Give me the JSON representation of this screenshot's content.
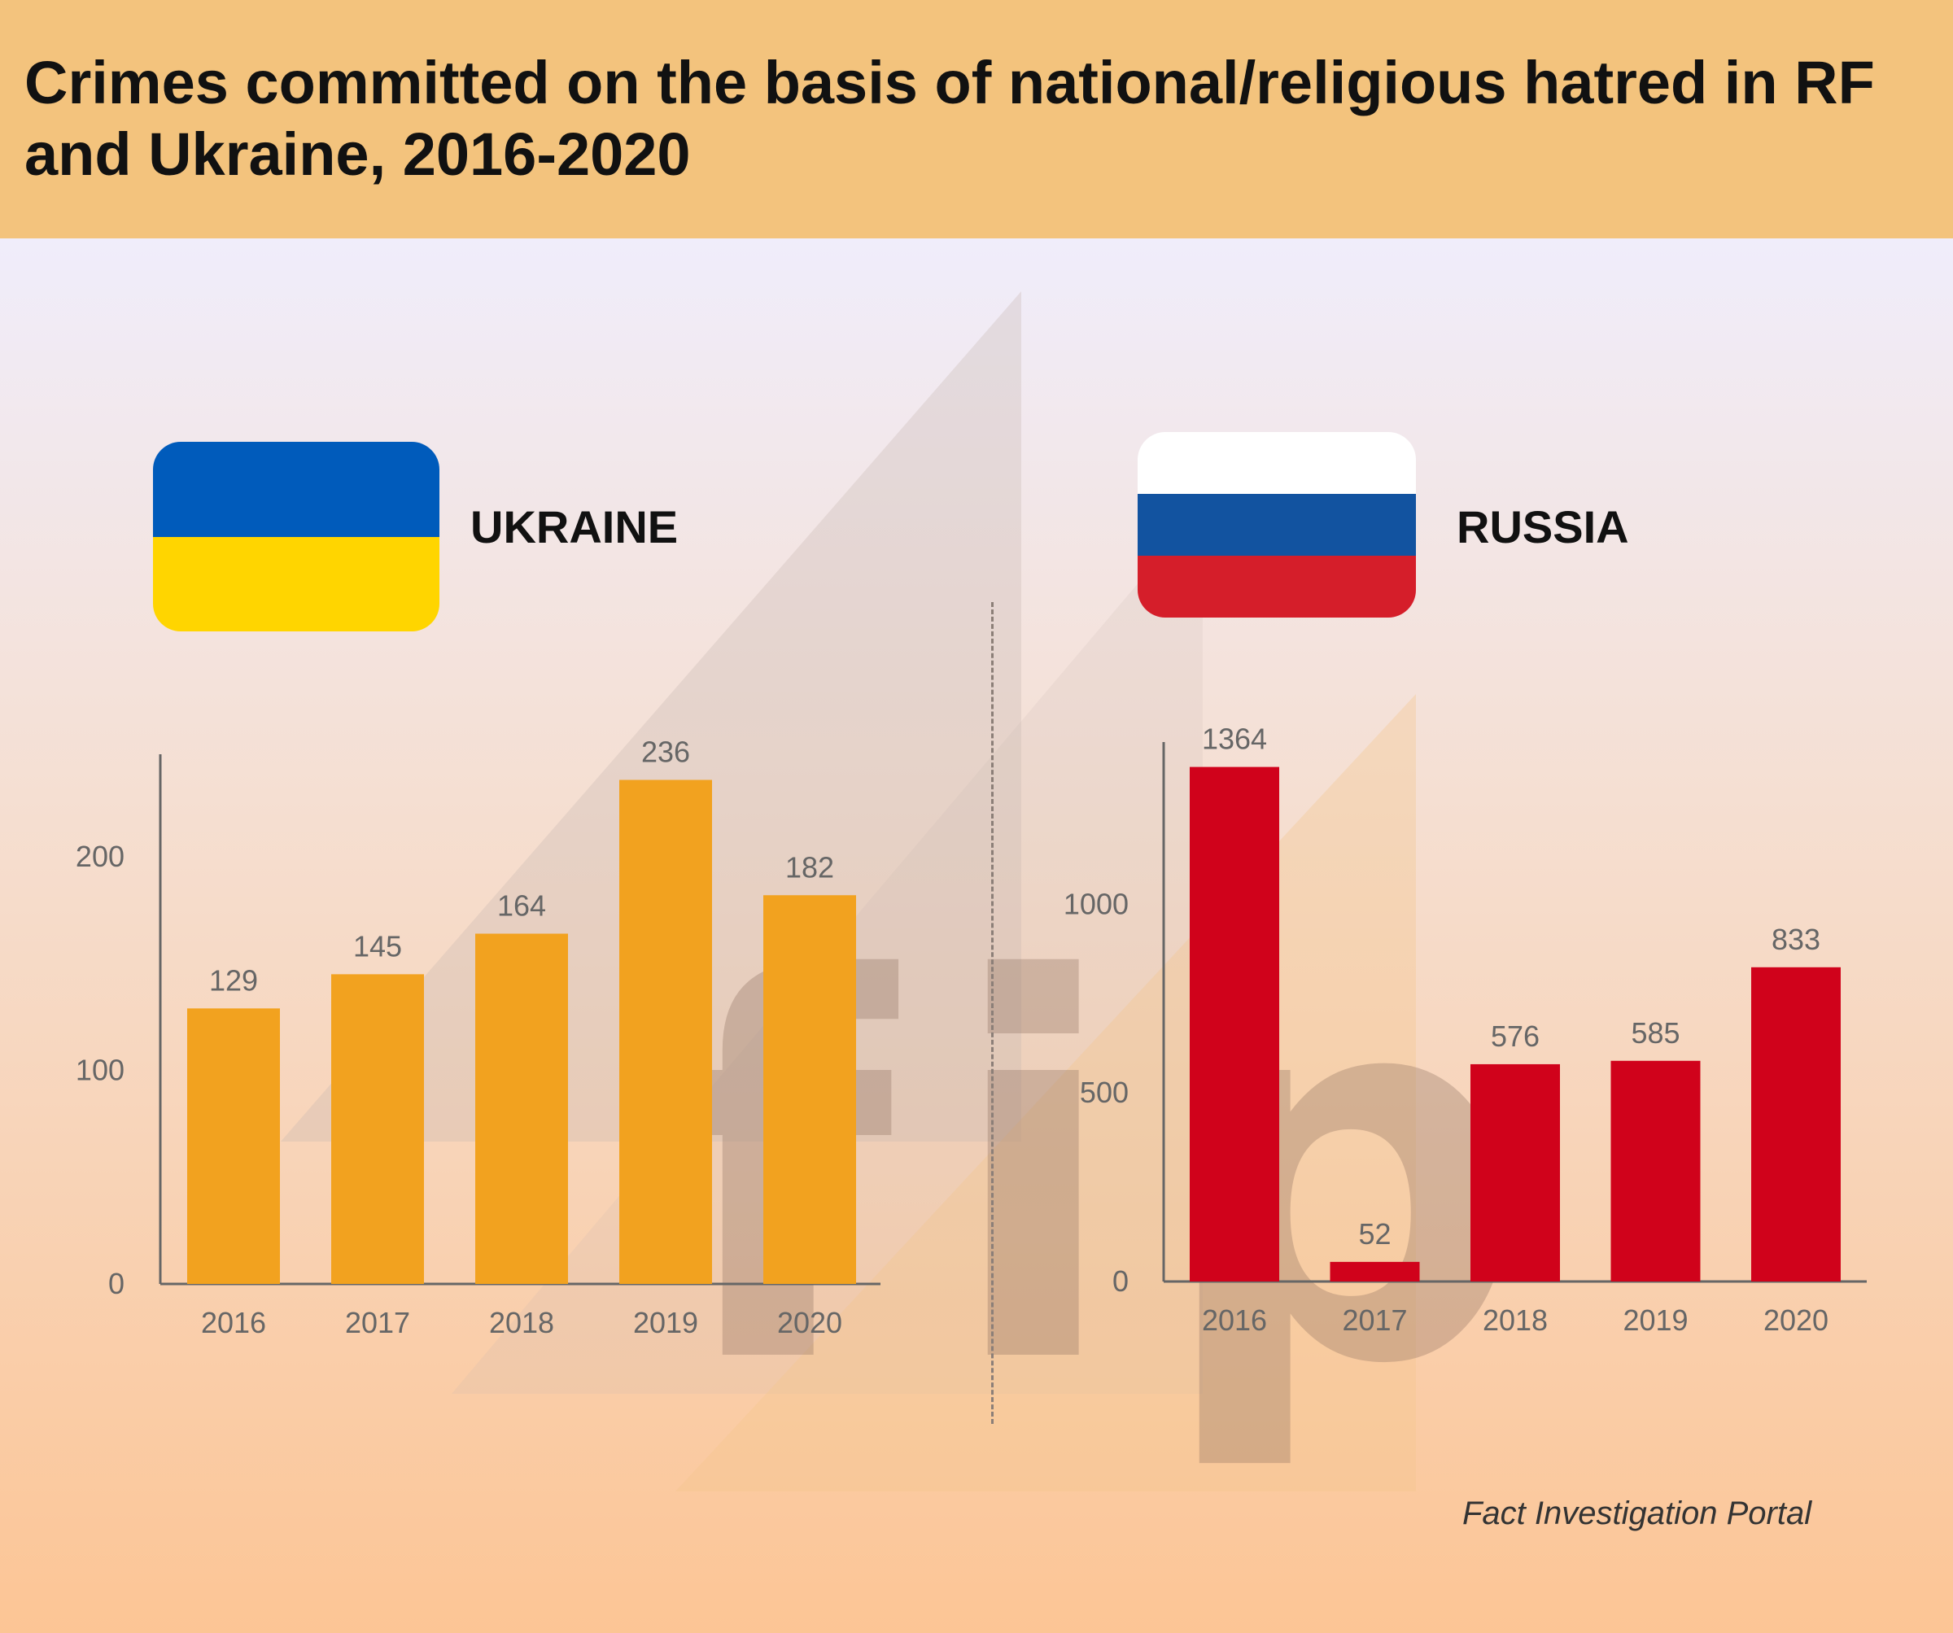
{
  "title": "Crimes committed on the basis of national/religious hatred in RF and Ukraine, 2016-2020",
  "footer": "Fact Investigation Portal",
  "watermark_letters": [
    "f",
    "i",
    "p"
  ],
  "colors": {
    "header_bg": "#f3c37d",
    "ukraine_bar": "#f2a21f",
    "russia_bar": "#d0021b",
    "axis": "#666666",
    "tick_text": "#666666",
    "ukraine_flag_blue": "#005bbb",
    "ukraine_flag_yellow": "#ffd500",
    "russia_flag_white": "#ffffff",
    "russia_flag_blue": "#1253a0",
    "russia_flag_red": "#d51e2a"
  },
  "countries": {
    "ukraine": {
      "label": "UKRAINE"
    },
    "russia": {
      "label": "RUSSIA"
    }
  },
  "chart_data": [
    {
      "type": "bar",
      "title": "UKRAINE",
      "categories": [
        "2016",
        "2017",
        "2018",
        "2019",
        "2020"
      ],
      "values": [
        129,
        145,
        164,
        236,
        182
      ],
      "data_labels": [
        "129",
        "145",
        "164",
        "236",
        "182"
      ],
      "yticks": [
        0,
        100,
        200
      ],
      "ylim": [
        0,
        248
      ],
      "grid": false,
      "color": "#f2a21f"
    },
    {
      "type": "bar",
      "title": "RUSSIA",
      "categories": [
        "2016",
        "2017",
        "2018",
        "2019",
        "2020"
      ],
      "values": [
        1364,
        52,
        576,
        585,
        833
      ],
      "data_labels": [
        "1364",
        "52",
        "576",
        "585",
        "833"
      ],
      "yticks": [
        0,
        500,
        1000
      ],
      "ylim": [
        0,
        1430
      ],
      "grid": false,
      "color": "#d0021b"
    }
  ]
}
